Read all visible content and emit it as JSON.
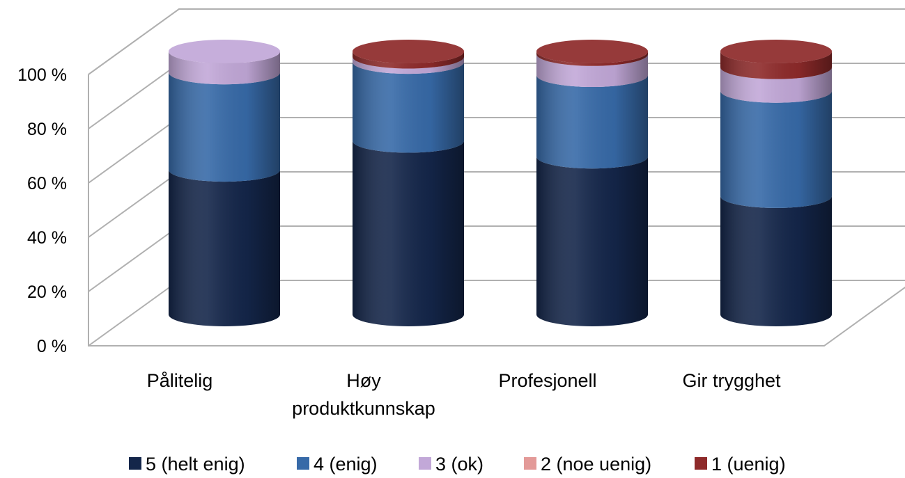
{
  "chart_data": {
    "type": "bar",
    "stacked": true,
    "percent_stacked": true,
    "style": "3d-cylinder",
    "title": "",
    "xlabel": "",
    "ylabel": "",
    "ylim": [
      0,
      100
    ],
    "y_ticks": [
      "0 %",
      "20 %",
      "40 %",
      "60 %",
      "80 %",
      "100 %"
    ],
    "categories": [
      "Pålitelig",
      "Høy produktkunnskap",
      "Profesjonell",
      "Gir trygghet"
    ],
    "category_lines": [
      [
        "Pålitelig"
      ],
      [
        "Høy",
        "produktkunnskap"
      ],
      [
        "Profesjonell"
      ],
      [
        "Gir trygghet"
      ]
    ],
    "series": [
      {
        "name": "5 (helt enig)",
        "color": "#14264a",
        "values": [
          55,
          66,
          60,
          45
        ]
      },
      {
        "name": "4 (enig)",
        "color": "#376aa8",
        "values": [
          37,
          30,
          31,
          40
        ]
      },
      {
        "name": "3 (ok)",
        "color": "#c2a8d8",
        "values": [
          8,
          2,
          8,
          9
        ]
      },
      {
        "name": "2 (noe uenig)",
        "color": "#e39a98",
        "values": [
          0,
          0,
          0,
          0
        ]
      },
      {
        "name": "1 (uenig)",
        "color": "#8e2a2a",
        "values": [
          0,
          2,
          1,
          6
        ]
      }
    ],
    "grid": true,
    "legend_position": "bottom"
  }
}
